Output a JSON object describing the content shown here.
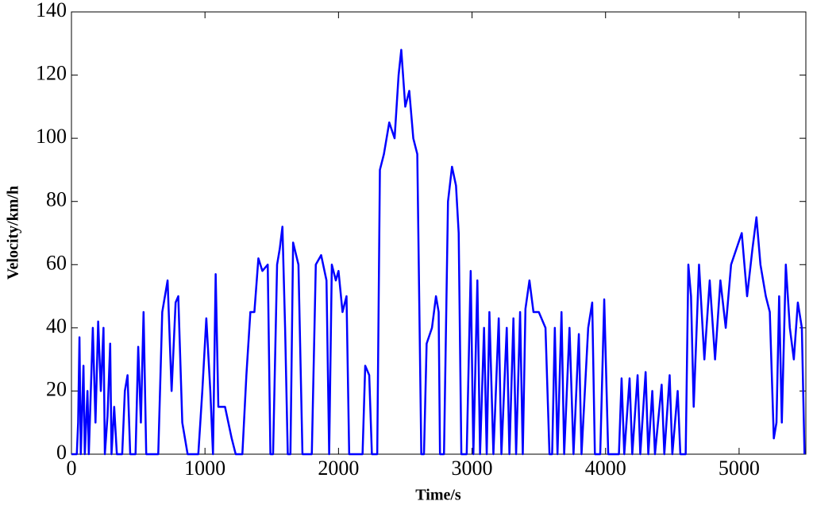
{
  "chart_data": {
    "type": "line",
    "xlabel": "Time/s",
    "ylabel": "Velocity/km/h",
    "color": "#0000ff",
    "xlim": [
      0,
      5500
    ],
    "xticks": [
      0,
      1000,
      2000,
      3000,
      4000,
      5000
    ],
    "ylim": [
      0,
      140
    ],
    "yticks": [
      0,
      20,
      40,
      60,
      80,
      100,
      120,
      140
    ],
    "x": [
      0,
      40,
      50,
      60,
      70,
      90,
      100,
      120,
      130,
      160,
      180,
      200,
      220,
      240,
      250,
      270,
      290,
      300,
      320,
      340,
      380,
      400,
      420,
      440,
      480,
      500,
      520,
      540,
      560,
      650,
      680,
      720,
      750,
      780,
      800,
      830,
      870,
      950,
      980,
      1010,
      1040,
      1060,
      1080,
      1100,
      1150,
      1200,
      1230,
      1280,
      1310,
      1340,
      1370,
      1400,
      1430,
      1470,
      1490,
      1510,
      1540,
      1560,
      1580,
      1600,
      1620,
      1640,
      1660,
      1700,
      1730,
      1800,
      1830,
      1870,
      1910,
      1930,
      1950,
      1980,
      2000,
      2030,
      2060,
      2080,
      2180,
      2200,
      2230,
      2250,
      2290,
      2310,
      2340,
      2380,
      2420,
      2450,
      2470,
      2500,
      2530,
      2560,
      2590,
      2620,
      2640,
      2660,
      2700,
      2730,
      2750,
      2760,
      2790,
      2820,
      2850,
      2880,
      2900,
      2920,
      2960,
      2990,
      3010,
      3040,
      3060,
      3090,
      3110,
      3130,
      3160,
      3200,
      3220,
      3260,
      3280,
      3310,
      3330,
      3360,
      3380,
      3400,
      3430,
      3460,
      3500,
      3550,
      3580,
      3600,
      3620,
      3640,
      3670,
      3690,
      3730,
      3760,
      3800,
      3820,
      3870,
      3900,
      3920,
      3960,
      3990,
      4020,
      4100,
      4120,
      4140,
      4180,
      4200,
      4240,
      4260,
      4300,
      4320,
      4350,
      4370,
      4420,
      4440,
      4480,
      4500,
      4540,
      4560,
      4600,
      4620,
      4640,
      4660,
      4700,
      4740,
      4780,
      4820,
      4860,
      4900,
      4940,
      4980,
      5020,
      5060,
      5100,
      5130,
      5160,
      5200,
      5230,
      5260,
      5280,
      5300,
      5320,
      5350,
      5380,
      5410,
      5440,
      5470,
      5490
    ],
    "values": [
      0,
      0,
      10,
      37,
      0,
      28,
      0,
      20,
      0,
      40,
      10,
      42,
      20,
      40,
      0,
      12,
      35,
      0,
      15,
      0,
      0,
      20,
      25,
      0,
      0,
      34,
      10,
      45,
      0,
      0,
      45,
      55,
      20,
      48,
      50,
      10,
      0,
      0,
      20,
      43,
      20,
      0,
      57,
      15,
      15,
      5,
      0,
      0,
      25,
      45,
      45,
      62,
      58,
      60,
      0,
      0,
      60,
      65,
      72,
      40,
      0,
      0,
      67,
      60,
      0,
      0,
      60,
      63,
      55,
      0,
      60,
      55,
      58,
      45,
      50,
      0,
      0,
      28,
      25,
      0,
      0,
      90,
      95,
      105,
      100,
      120,
      128,
      110,
      115,
      100,
      95,
      0,
      0,
      35,
      40,
      50,
      45,
      0,
      0,
      80,
      91,
      85,
      70,
      0,
      0,
      58,
      0,
      55,
      0,
      40,
      0,
      45,
      0,
      43,
      0,
      40,
      0,
      43,
      0,
      45,
      0,
      46,
      55,
      45,
      45,
      40,
      0,
      0,
      40,
      0,
      45,
      0,
      40,
      0,
      38,
      0,
      40,
      48,
      0,
      0,
      49,
      0,
      0,
      24,
      0,
      24,
      0,
      25,
      0,
      26,
      0,
      20,
      0,
      22,
      0,
      25,
      0,
      20,
      0,
      0,
      60,
      50,
      15,
      60,
      30,
      55,
      30,
      55,
      40,
      60,
      65,
      70,
      50,
      65,
      75,
      60,
      50,
      45,
      5,
      10,
      50,
      10,
      60,
      40,
      30,
      48,
      40,
      0
    ]
  }
}
